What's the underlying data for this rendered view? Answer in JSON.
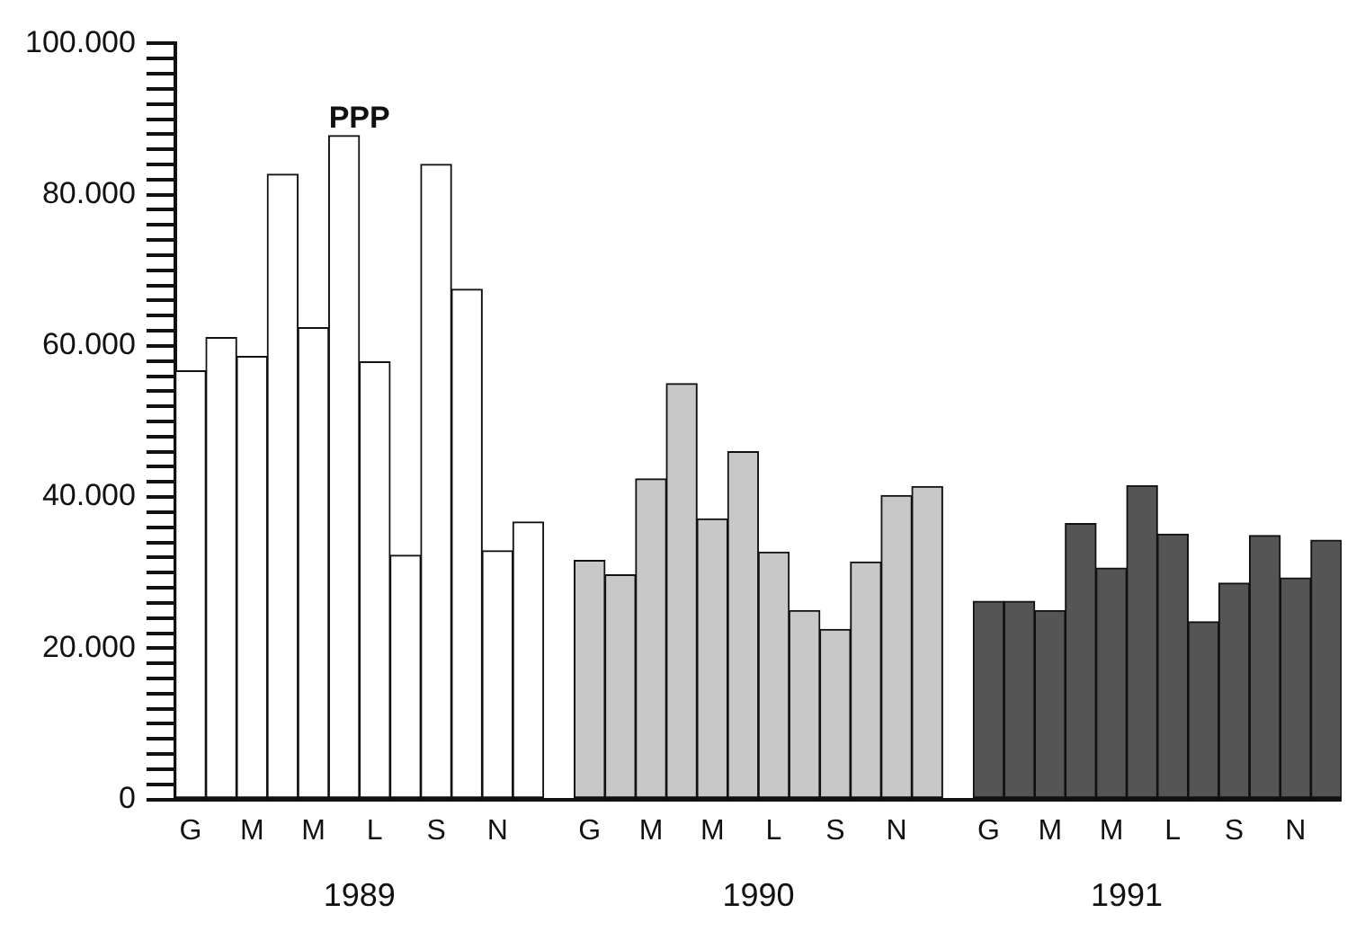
{
  "chart_data": {
    "type": "bar",
    "title": "PPP",
    "categories": [
      "G",
      null,
      "M",
      null,
      "M",
      null,
      "L",
      null,
      "S",
      null,
      "N",
      null,
      null,
      "G",
      null,
      "M",
      null,
      "M",
      null,
      "L",
      null,
      "S",
      null,
      "N",
      null,
      null,
      "G",
      null,
      "M",
      null,
      "M",
      null,
      "L",
      null,
      "S",
      null,
      "N",
      null
    ],
    "series": [
      {
        "color": "#ffffff",
        "values": [
          56700,
          61100,
          58600,
          82700,
          62400,
          87800,
          57900,
          32300,
          84000,
          67500,
          32900,
          36700,
          null,
          null,
          null,
          null,
          null,
          null,
          null,
          null,
          null,
          null,
          null,
          null,
          null,
          null,
          null,
          null,
          null,
          null,
          null,
          null,
          null,
          null,
          null,
          null,
          null,
          null
        ]
      },
      {
        "color": "#c8c8c8",
        "values": [
          null,
          null,
          null,
          null,
          null,
          null,
          null,
          null,
          null,
          null,
          null,
          null,
          null,
          31600,
          29700,
          42400,
          55000,
          37100,
          46000,
          32700,
          25000,
          22500,
          31400,
          40200,
          41400,
          null,
          null,
          null,
          null,
          null,
          null,
          null,
          null,
          null,
          null,
          null,
          null,
          null
        ]
      },
      {
        "color": "#555555",
        "values": [
          null,
          null,
          null,
          null,
          null,
          null,
          null,
          null,
          null,
          null,
          null,
          null,
          null,
          null,
          null,
          null,
          null,
          null,
          null,
          null,
          null,
          null,
          null,
          null,
          null,
          null,
          26200,
          26200,
          25000,
          36500,
          30600,
          41500,
          35100,
          23500,
          28600,
          34900,
          29300,
          34300
        ]
      }
    ],
    "annotations": [
      "1989",
      "1990",
      "1991"
    ],
    "ylim": [
      0,
      100000
    ],
    "yticks": [
      {
        "value": 0,
        "label": "0"
      },
      {
        "value": 2000,
        "label": null
      },
      {
        "value": 4000,
        "label": null
      },
      {
        "value": 6000,
        "label": null
      },
      {
        "value": 8000,
        "label": null
      },
      {
        "value": 10000,
        "label": null
      },
      {
        "value": 12000,
        "label": null
      },
      {
        "value": 14000,
        "label": null
      },
      {
        "value": 16000,
        "label": null
      },
      {
        "value": 18000,
        "label": null
      },
      {
        "value": 20000,
        "label": "20.000"
      },
      {
        "value": 22000,
        "label": null
      },
      {
        "value": 24000,
        "label": null
      },
      {
        "value": 26000,
        "label": null
      },
      {
        "value": 28000,
        "label": null
      },
      {
        "value": 30000,
        "label": null
      },
      {
        "value": 32000,
        "label": null
      },
      {
        "value": 34000,
        "label": null
      },
      {
        "value": 36000,
        "label": null
      },
      {
        "value": 38000,
        "label": null
      },
      {
        "value": 40000,
        "label": "40.000"
      },
      {
        "value": 42000,
        "label": null
      },
      {
        "value": 44000,
        "label": null
      },
      {
        "value": 46000,
        "label": null
      },
      {
        "value": 48000,
        "label": null
      },
      {
        "value": 50000,
        "label": null
      },
      {
        "value": 52000,
        "label": null
      },
      {
        "value": 54000,
        "label": null
      },
      {
        "value": 56000,
        "label": null
      },
      {
        "value": 58000,
        "label": null
      },
      {
        "value": 60000,
        "label": "60.000"
      },
      {
        "value": 62000,
        "label": null
      },
      {
        "value": 64000,
        "label": null
      },
      {
        "value": 66000,
        "label": null
      },
      {
        "value": 68000,
        "label": null
      },
      {
        "value": 70000,
        "label": null
      },
      {
        "value": 72000,
        "label": null
      },
      {
        "value": 74000,
        "label": null
      },
      {
        "value": 76000,
        "label": null
      },
      {
        "value": 78000,
        "label": null
      },
      {
        "value": 80000,
        "label": "80.000"
      },
      {
        "value": 82000,
        "label": null
      },
      {
        "value": 84000,
        "label": null
      },
      {
        "value": 86000,
        "label": null
      },
      {
        "value": 88000,
        "label": null
      },
      {
        "value": 90000,
        "label": null
      },
      {
        "value": 92000,
        "label": null
      },
      {
        "value": 94000,
        "label": null
      },
      {
        "value": 96000,
        "label": null
      },
      {
        "value": 98000,
        "label": null
      },
      {
        "value": 100000,
        "label": "100.000"
      }
    ],
    "grid": false,
    "legend": false
  }
}
